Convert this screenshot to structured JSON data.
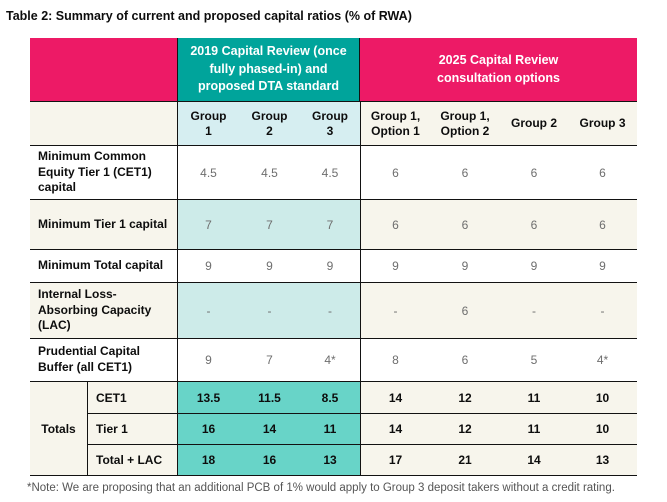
{
  "caption": "Table 2: Summary of current and proposed capital ratios (% of RWA)",
  "sections": {
    "review2019": "2019 Capital Review (once fully phased-in) and proposed DTA standard",
    "review2025": "2025 Capital Review consultation options"
  },
  "columns": [
    "Group 1",
    "Group 2",
    "Group 3",
    "Group 1, Option 1",
    "Group 1, Option 2",
    "Group 2",
    "Group 3"
  ],
  "rows": [
    {
      "label": "Minimum Common Equity Tier 1 (CET1) capital",
      "values": [
        "4.5",
        "4.5",
        "4.5",
        "6",
        "6",
        "6",
        "6"
      ]
    },
    {
      "label": "Minimum Tier 1 capital",
      "values": [
        "7",
        "7",
        "7",
        "6",
        "6",
        "6",
        "6"
      ]
    },
    {
      "label": "Minimum Total capital",
      "values": [
        "9",
        "9",
        "9",
        "9",
        "9",
        "9",
        "9"
      ]
    },
    {
      "label": "Internal Loss-Absorbing Capacity (LAC)",
      "values": [
        "-",
        "-",
        "-",
        "-",
        "6",
        "-",
        "-"
      ]
    },
    {
      "label": "Prudential Capital Buffer (all CET1)",
      "values": [
        "9",
        "7",
        "4*",
        "8",
        "6",
        "5",
        "4*"
      ]
    }
  ],
  "totals": {
    "label": "Totals",
    "rows": [
      {
        "label": "CET1",
        "values": [
          "13.5",
          "11.5",
          "8.5",
          "14",
          "12",
          "11",
          "10"
        ]
      },
      {
        "label": "Tier 1",
        "values": [
          "16",
          "14",
          "11",
          "14",
          "12",
          "11",
          "10"
        ]
      },
      {
        "label": "Total + LAC",
        "values": [
          "18",
          "16",
          "13",
          "17",
          "21",
          "14",
          "13"
        ]
      }
    ]
  },
  "footnote": "*Note: We are proposing that an additional PCB of 1% would apply to Group 3 deposit takers without a credit rating.",
  "colors": {
    "header_pink": "#ed1a66",
    "header_teal": "#00a49b",
    "group_header_cyan": "#d6eef1",
    "body_light_teal": "#cdebe9",
    "totals_teal": "#68d4c8",
    "zebra_cream": "#f7f5ec",
    "body_number_gray": "#6e6e6e"
  }
}
